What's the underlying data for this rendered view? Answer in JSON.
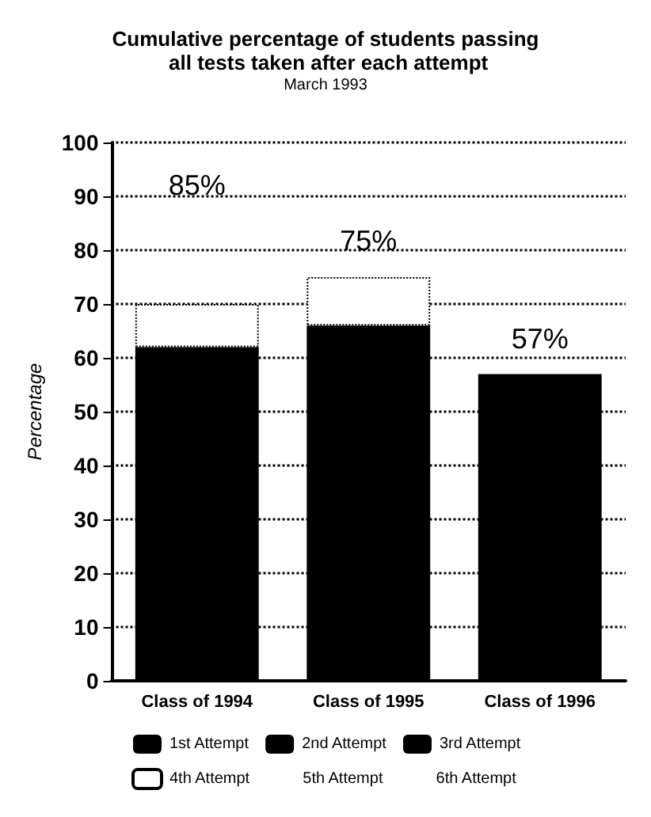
{
  "chart_data": {
    "type": "bar",
    "title": "Cumulative percentage of students passing all tests taken after each attempt",
    "subtitle": "March 1993",
    "ylabel": "Percentage",
    "categories": [
      "Class of 1994",
      "Class of 1995",
      "Class of 1996"
    ],
    "stacked": true,
    "series": [
      {
        "name": "1st Attempt",
        "color": "#000000",
        "values": [
          62,
          66,
          57
        ]
      },
      {
        "name": "2nd Attempt",
        "color": "#000000",
        "values": [
          0,
          0,
          0
        ]
      },
      {
        "name": "3rd Attempt",
        "color": "#000000",
        "values": [
          0,
          0,
          0
        ]
      },
      {
        "name": "4th Attempt",
        "color": "#ffffff",
        "line_style": "dotted",
        "values": [
          8,
          9,
          null
        ]
      },
      {
        "name": "5th Attempt",
        "values": [
          null,
          null,
          null
        ]
      },
      {
        "name": "6th Attempt",
        "values": [
          null,
          null,
          null
        ]
      }
    ],
    "ylim": [
      0,
      100
    ],
    "yticks": [
      0,
      10,
      20,
      30,
      40,
      50,
      60,
      70,
      80,
      90,
      100
    ],
    "grid": "y",
    "legend": "bottom",
    "annotations": [
      "85%",
      "75%",
      "57%"
    ]
  }
}
